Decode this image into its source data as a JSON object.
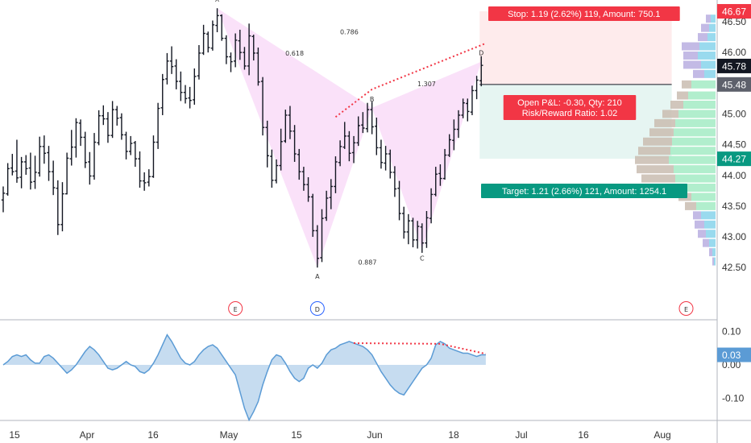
{
  "chart_data": {
    "type": "candlestick",
    "title": "",
    "x_ticks": [
      "15",
      "Apr",
      "16",
      "May",
      "15",
      "Jun",
      "18",
      "Jul",
      "16",
      "Aug"
    ],
    "price_axis": {
      "ticks": [
        "46.50",
        "46.00",
        "45.50",
        "45.00",
        "44.50",
        "44.00",
        "43.50",
        "43.00",
        "42.50"
      ],
      "tick_values": [
        46.5,
        46.0,
        45.5,
        45.0,
        44.5,
        44.0,
        43.5,
        43.0,
        42.5
      ],
      "range": [
        42.3,
        46.8
      ]
    },
    "indicator_axis": {
      "ticks": [
        "0.10",
        "0.00",
        "-0.10"
      ],
      "tick_values": [
        0.1,
        0.0,
        -0.1
      ],
      "range": [
        -0.18,
        0.14
      ]
    },
    "price_tags": [
      {
        "label": "46.67",
        "value": 46.67,
        "color": "#f23645"
      },
      {
        "label": "45.78",
        "value": 45.78,
        "color": "#131722"
      },
      {
        "label": "45.48",
        "value": 45.48,
        "color": "#5d606b"
      },
      {
        "label": "44.27",
        "value": 44.27,
        "color": "#089981"
      }
    ],
    "indicator_tag": {
      "label": "0.03",
      "value": 0.03,
      "color": "#5b9bd5"
    },
    "pattern": {
      "points": [
        {
          "label": "X",
          "bar": 47,
          "price": 46.72
        },
        {
          "label": "A",
          "bar": 69,
          "price": 42.5
        },
        {
          "label": "B",
          "bar": 81,
          "price": 45.1
        },
        {
          "label": "C",
          "bar": 92,
          "price": 42.8
        },
        {
          "label": "D",
          "bar": 105,
          "price": 45.85
        }
      ],
      "ratios": [
        {
          "label": "0.618",
          "bar": 64,
          "price": 45.95
        },
        {
          "label": "0.786",
          "bar": 76,
          "price": 46.3
        },
        {
          "label": "1.307",
          "bar": 93,
          "price": 45.45
        },
        {
          "label": "0.887",
          "bar": 80,
          "price": 42.55
        }
      ]
    },
    "divergence_price": {
      "from": [
        73,
        44.95
      ],
      "to_a": [
        81,
        45.4
      ],
      "to_b": [
        106,
        46.15
      ]
    },
    "divergence_indicator": {
      "from": [
        77,
        0.065
      ],
      "mid": [
        96,
        0.063
      ],
      "to": [
        106,
        0.033
      ]
    },
    "event_markers": [
      {
        "label": "E",
        "bar": 51,
        "style": "red"
      },
      {
        "label": "D",
        "bar": 69,
        "style": "blue"
      },
      {
        "label": "E",
        "bar": 150,
        "style": "red"
      }
    ],
    "trade": {
      "stop_text": "Stop: 1.19 (2.62%) 119, Amount: 750.1",
      "pnl_text": "Open P&L: -0.30, Qty: 210",
      "rr_text": "Risk/Reward Ratio: 1.02",
      "target_text": "Target: 1.21 (2.66%) 121, Amount: 1254.1",
      "entry": 45.48,
      "stop": 46.67,
      "target": 44.27,
      "bar_start": 105,
      "bar_end": 144
    },
    "ohlc": [
      {
        "o": 43.6,
        "h": 43.82,
        "l": 43.4,
        "c": 43.71
      },
      {
        "o": 43.7,
        "h": 44.2,
        "l": 43.67,
        "c": 44.11
      },
      {
        "o": 44.12,
        "h": 44.35,
        "l": 44.0,
        "c": 44.06
      },
      {
        "o": 44.07,
        "h": 44.58,
        "l": 43.88,
        "c": 43.96
      },
      {
        "o": 43.97,
        "h": 44.3,
        "l": 43.79,
        "c": 44.22
      },
      {
        "o": 44.22,
        "h": 44.33,
        "l": 44.01,
        "c": 44.11
      },
      {
        "o": 44.12,
        "h": 44.37,
        "l": 43.77,
        "c": 43.89
      },
      {
        "o": 43.9,
        "h": 44.32,
        "l": 43.78,
        "c": 44.05
      },
      {
        "o": 44.04,
        "h": 44.63,
        "l": 43.98,
        "c": 44.47
      },
      {
        "o": 44.47,
        "h": 44.65,
        "l": 44.19,
        "c": 44.36
      },
      {
        "o": 44.37,
        "h": 44.48,
        "l": 43.91,
        "c": 44.06
      },
      {
        "o": 44.06,
        "h": 44.24,
        "l": 43.68,
        "c": 43.8
      },
      {
        "o": 43.79,
        "h": 43.92,
        "l": 43.03,
        "c": 43.2
      },
      {
        "o": 43.2,
        "h": 43.89,
        "l": 43.09,
        "c": 43.7
      },
      {
        "o": 43.7,
        "h": 44.37,
        "l": 43.69,
        "c": 44.28
      },
      {
        "o": 44.27,
        "h": 44.74,
        "l": 44.16,
        "c": 44.46
      },
      {
        "o": 44.46,
        "h": 44.93,
        "l": 44.29,
        "c": 44.86
      },
      {
        "o": 44.85,
        "h": 44.91,
        "l": 44.48,
        "c": 44.62
      },
      {
        "o": 44.62,
        "h": 44.71,
        "l": 44.12,
        "c": 44.21
      },
      {
        "o": 44.22,
        "h": 44.38,
        "l": 43.85,
        "c": 43.99
      },
      {
        "o": 43.99,
        "h": 44.69,
        "l": 43.93,
        "c": 44.54
      },
      {
        "o": 44.53,
        "h": 45.06,
        "l": 44.49,
        "c": 44.97
      },
      {
        "o": 44.97,
        "h": 45.14,
        "l": 44.82,
        "c": 44.92
      },
      {
        "o": 44.92,
        "h": 45.03,
        "l": 44.53,
        "c": 44.65
      },
      {
        "o": 44.65,
        "h": 45.21,
        "l": 44.61,
        "c": 45.07
      },
      {
        "o": 45.07,
        "h": 45.13,
        "l": 44.81,
        "c": 44.93
      },
      {
        "o": 44.94,
        "h": 45.01,
        "l": 44.58,
        "c": 44.66
      },
      {
        "o": 44.66,
        "h": 44.71,
        "l": 44.26,
        "c": 44.39
      },
      {
        "o": 44.39,
        "h": 44.64,
        "l": 44.33,
        "c": 44.52
      },
      {
        "o": 44.53,
        "h": 44.56,
        "l": 44.14,
        "c": 44.27
      },
      {
        "o": 44.27,
        "h": 44.39,
        "l": 43.8,
        "c": 43.91
      },
      {
        "o": 43.91,
        "h": 44.05,
        "l": 43.75,
        "c": 43.88
      },
      {
        "o": 43.89,
        "h": 44.1,
        "l": 43.82,
        "c": 43.98
      },
      {
        "o": 43.98,
        "h": 44.65,
        "l": 43.96,
        "c": 44.54
      },
      {
        "o": 44.54,
        "h": 45.18,
        "l": 44.43,
        "c": 45.09
      },
      {
        "o": 45.1,
        "h": 45.65,
        "l": 44.98,
        "c": 45.56
      },
      {
        "o": 45.57,
        "h": 45.99,
        "l": 45.48,
        "c": 45.86
      },
      {
        "o": 45.86,
        "h": 46.1,
        "l": 45.65,
        "c": 45.77
      },
      {
        "o": 45.78,
        "h": 45.89,
        "l": 45.4,
        "c": 45.53
      },
      {
        "o": 45.53,
        "h": 45.69,
        "l": 45.21,
        "c": 45.35
      },
      {
        "o": 45.35,
        "h": 45.47,
        "l": 45.17,
        "c": 45.25
      },
      {
        "o": 45.26,
        "h": 45.44,
        "l": 45.09,
        "c": 45.22
      },
      {
        "o": 45.23,
        "h": 45.74,
        "l": 45.15,
        "c": 45.61
      },
      {
        "o": 45.62,
        "h": 46.12,
        "l": 45.56,
        "c": 45.99
      },
      {
        "o": 45.99,
        "h": 46.45,
        "l": 45.96,
        "c": 46.31
      },
      {
        "o": 46.3,
        "h": 46.34,
        "l": 46.0,
        "c": 46.08
      },
      {
        "o": 46.07,
        "h": 46.52,
        "l": 46.03,
        "c": 46.45
      },
      {
        "o": 46.44,
        "h": 46.72,
        "l": 46.33,
        "c": 46.6
      },
      {
        "o": 46.6,
        "h": 46.62,
        "l": 46.19,
        "c": 46.23
      },
      {
        "o": 46.23,
        "h": 46.28,
        "l": 45.81,
        "c": 45.93
      },
      {
        "o": 45.93,
        "h": 46.0,
        "l": 45.68,
        "c": 45.85
      },
      {
        "o": 45.86,
        "h": 46.31,
        "l": 45.76,
        "c": 46.2
      },
      {
        "o": 46.19,
        "h": 46.37,
        "l": 45.88,
        "c": 46.0
      },
      {
        "o": 46.0,
        "h": 46.09,
        "l": 45.72,
        "c": 45.78
      },
      {
        "o": 45.78,
        "h": 46.47,
        "l": 45.63,
        "c": 46.27
      },
      {
        "o": 46.26,
        "h": 46.29,
        "l": 45.87,
        "c": 45.99
      },
      {
        "o": 45.99,
        "h": 46.08,
        "l": 45.46,
        "c": 45.52
      },
      {
        "o": 45.53,
        "h": 45.6,
        "l": 44.65,
        "c": 44.78
      },
      {
        "o": 44.78,
        "h": 44.89,
        "l": 44.13,
        "c": 44.32
      },
      {
        "o": 44.31,
        "h": 44.42,
        "l": 43.8,
        "c": 43.92
      },
      {
        "o": 43.92,
        "h": 44.26,
        "l": 43.87,
        "c": 44.16
      },
      {
        "o": 44.16,
        "h": 44.76,
        "l": 44.08,
        "c": 44.55
      },
      {
        "o": 44.56,
        "h": 45.07,
        "l": 44.53,
        "c": 44.98
      },
      {
        "o": 44.98,
        "h": 45.13,
        "l": 44.59,
        "c": 44.72
      },
      {
        "o": 44.72,
        "h": 44.82,
        "l": 44.22,
        "c": 44.35
      },
      {
        "o": 44.34,
        "h": 44.43,
        "l": 43.93,
        "c": 44.06
      },
      {
        "o": 44.06,
        "h": 44.14,
        "l": 43.75,
        "c": 43.85
      },
      {
        "o": 43.85,
        "h": 43.97,
        "l": 43.57,
        "c": 43.65
      },
      {
        "o": 43.65,
        "h": 43.7,
        "l": 43.0,
        "c": 43.1
      },
      {
        "o": 43.1,
        "h": 43.19,
        "l": 42.5,
        "c": 42.65
      },
      {
        "o": 42.66,
        "h": 43.45,
        "l": 42.59,
        "c": 43.3
      },
      {
        "o": 43.31,
        "h": 43.75,
        "l": 43.26,
        "c": 43.63
      },
      {
        "o": 43.64,
        "h": 43.94,
        "l": 43.45,
        "c": 43.82
      },
      {
        "o": 43.82,
        "h": 44.31,
        "l": 43.71,
        "c": 44.22
      },
      {
        "o": 44.21,
        "h": 44.57,
        "l": 44.15,
        "c": 44.47
      },
      {
        "o": 44.46,
        "h": 44.87,
        "l": 44.43,
        "c": 44.64
      },
      {
        "o": 44.64,
        "h": 44.72,
        "l": 44.23,
        "c": 44.36
      },
      {
        "o": 44.37,
        "h": 44.64,
        "l": 44.2,
        "c": 44.53
      },
      {
        "o": 44.53,
        "h": 44.96,
        "l": 44.48,
        "c": 44.81
      },
      {
        "o": 44.82,
        "h": 45.03,
        "l": 44.69,
        "c": 44.77
      },
      {
        "o": 44.76,
        "h": 45.18,
        "l": 44.7,
        "c": 45.07
      },
      {
        "o": 45.07,
        "h": 45.2,
        "l": 44.67,
        "c": 44.79
      },
      {
        "o": 44.8,
        "h": 44.94,
        "l": 44.33,
        "c": 44.45
      },
      {
        "o": 44.45,
        "h": 44.58,
        "l": 44.11,
        "c": 44.21
      },
      {
        "o": 44.2,
        "h": 44.48,
        "l": 44.08,
        "c": 44.35
      },
      {
        "o": 44.35,
        "h": 44.42,
        "l": 43.95,
        "c": 44.05
      },
      {
        "o": 44.05,
        "h": 44.15,
        "l": 43.65,
        "c": 43.78
      },
      {
        "o": 43.79,
        "h": 43.91,
        "l": 43.27,
        "c": 43.38
      },
      {
        "o": 43.38,
        "h": 43.49,
        "l": 42.97,
        "c": 43.08
      },
      {
        "o": 43.08,
        "h": 43.37,
        "l": 42.88,
        "c": 43.26
      },
      {
        "o": 43.26,
        "h": 43.31,
        "l": 42.83,
        "c": 42.95
      },
      {
        "o": 42.95,
        "h": 43.26,
        "l": 42.81,
        "c": 43.17
      },
      {
        "o": 43.16,
        "h": 43.22,
        "l": 42.74,
        "c": 42.9
      },
      {
        "o": 42.9,
        "h": 43.42,
        "l": 42.82,
        "c": 43.31
      },
      {
        "o": 43.3,
        "h": 43.79,
        "l": 43.22,
        "c": 43.69
      },
      {
        "o": 43.69,
        "h": 44.14,
        "l": 43.66,
        "c": 44.02
      },
      {
        "o": 44.03,
        "h": 44.18,
        "l": 43.83,
        "c": 43.95
      },
      {
        "o": 43.95,
        "h": 44.43,
        "l": 43.93,
        "c": 44.33
      },
      {
        "o": 44.33,
        "h": 44.67,
        "l": 44.3,
        "c": 44.58
      },
      {
        "o": 44.57,
        "h": 44.91,
        "l": 44.41,
        "c": 44.75
      },
      {
        "o": 44.75,
        "h": 45.06,
        "l": 44.61,
        "c": 44.98
      },
      {
        "o": 44.98,
        "h": 45.25,
        "l": 44.93,
        "c": 45.18
      },
      {
        "o": 45.17,
        "h": 45.25,
        "l": 44.88,
        "c": 45.04
      },
      {
        "o": 45.03,
        "h": 45.46,
        "l": 44.98,
        "c": 45.38
      },
      {
        "o": 45.38,
        "h": 45.62,
        "l": 45.24,
        "c": 45.55
      },
      {
        "o": 45.54,
        "h": 45.94,
        "l": 45.45,
        "c": 45.79
      }
    ],
    "indicator": [
      0.0,
      0.01,
      0.025,
      0.03,
      0.025,
      0.03,
      0.015,
      0.005,
      0.005,
      0.025,
      0.03,
      0.02,
      0.005,
      -0.01,
      -0.025,
      -0.015,
      0.0,
      0.02,
      0.04,
      0.055,
      0.045,
      0.03,
      0.01,
      -0.01,
      -0.015,
      -0.01,
      0.0,
      0.01,
      0.0,
      -0.005,
      -0.02,
      -0.025,
      -0.015,
      0.005,
      0.03,
      0.06,
      0.09,
      0.07,
      0.045,
      0.02,
      0.005,
      0.0,
      0.01,
      0.03,
      0.045,
      0.055,
      0.06,
      0.05,
      0.03,
      0.01,
      -0.01,
      -0.03,
      -0.08,
      -0.13,
      -0.165,
      -0.14,
      -0.11,
      -0.06,
      -0.02,
      0.015,
      0.03,
      0.025,
      0.005,
      -0.02,
      -0.04,
      -0.05,
      -0.04,
      -0.01,
      0.0,
      -0.01,
      0.005,
      0.03,
      0.045,
      0.05,
      0.06,
      0.065,
      0.07,
      0.065,
      0.06,
      0.055,
      0.045,
      0.03,
      0.005,
      -0.02,
      -0.04,
      -0.06,
      -0.075,
      -0.085,
      -0.09,
      -0.07,
      -0.05,
      -0.03,
      -0.01,
      0.0,
      0.02,
      0.06,
      0.07,
      0.063,
      0.05,
      0.045,
      0.04,
      0.035,
      0.035,
      0.03,
      0.025,
      0.03,
      0.03
    ],
    "volume_profile": [
      {
        "price": 46.55,
        "blue": 6,
        "green": 0,
        "gray": 6
      },
      {
        "price": 46.4,
        "blue": 8,
        "green": 0,
        "gray": 10
      },
      {
        "price": 46.25,
        "blue": 10,
        "green": 0,
        "gray": 12
      },
      {
        "price": 46.1,
        "blue": 20,
        "green": 0,
        "gray": 22
      },
      {
        "price": 45.95,
        "blue": 22,
        "green": 0,
        "gray": 18
      },
      {
        "price": 45.8,
        "blue": 18,
        "green": 0,
        "gray": 22
      },
      {
        "price": 45.65,
        "blue": 14,
        "green": 0,
        "gray": 14
      },
      {
        "price": 45.48,
        "blue": 0,
        "green": 30,
        "gray": 12
      },
      {
        "price": 45.3,
        "blue": 0,
        "green": 34,
        "gray": 14
      },
      {
        "price": 45.15,
        "blue": 0,
        "green": 40,
        "gray": 16
      },
      {
        "price": 45.0,
        "blue": 0,
        "green": 46,
        "gray": 20
      },
      {
        "price": 44.85,
        "blue": 0,
        "green": 50,
        "gray": 26
      },
      {
        "price": 44.7,
        "blue": 0,
        "green": 52,
        "gray": 30
      },
      {
        "price": 44.55,
        "blue": 0,
        "green": 54,
        "gray": 36
      },
      {
        "price": 44.4,
        "blue": 0,
        "green": 56,
        "gray": 40
      },
      {
        "price": 44.25,
        "blue": 0,
        "green": 58,
        "gray": 42
      },
      {
        "price": 44.1,
        "blue": 0,
        "green": 52,
        "gray": 46
      },
      {
        "price": 43.95,
        "blue": 0,
        "green": 50,
        "gray": 42
      },
      {
        "price": 43.8,
        "blue": 0,
        "green": 46,
        "gray": 34
      },
      {
        "price": 43.65,
        "blue": 0,
        "green": 30,
        "gray": 16
      },
      {
        "price": 43.5,
        "blue": 0,
        "green": 24,
        "gray": 14
      },
      {
        "price": 43.35,
        "blue": 18,
        "green": 0,
        "gray": 10
      },
      {
        "price": 43.2,
        "blue": 14,
        "green": 0,
        "gray": 12
      },
      {
        "price": 43.05,
        "blue": 12,
        "green": 0,
        "gray": 10
      },
      {
        "price": 42.9,
        "blue": 8,
        "green": 0,
        "gray": 8
      },
      {
        "price": 42.75,
        "blue": 4,
        "green": 0,
        "gray": 4
      },
      {
        "price": 42.6,
        "blue": 2,
        "green": 0,
        "gray": 2
      }
    ]
  }
}
